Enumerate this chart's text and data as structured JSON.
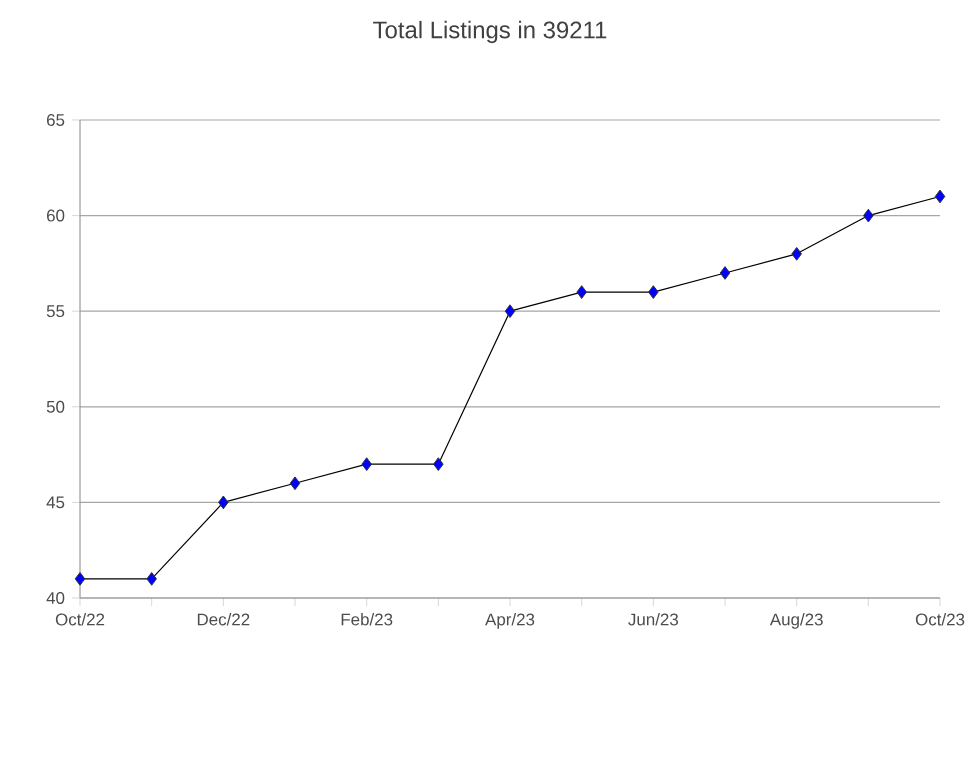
{
  "chart_data": {
    "type": "line",
    "title": "Total Listings in 39211",
    "categories": [
      "Oct/22",
      null,
      "Dec/22",
      null,
      "Feb/23",
      null,
      "Apr/23",
      null,
      "Jun/23",
      null,
      "Aug/23",
      null,
      "Oct/23"
    ],
    "series": [
      {
        "color": "#0000ff",
        "values": [
          41,
          41,
          45,
          46,
          47,
          47,
          55,
          56,
          56,
          57,
          58,
          60,
          61
        ]
      }
    ],
    "ylim": [
      40,
      65
    ],
    "yticks": [
      40,
      45,
      50,
      55,
      60,
      65
    ],
    "grid": "y",
    "marker": "diamond",
    "line_style": "solid"
  }
}
